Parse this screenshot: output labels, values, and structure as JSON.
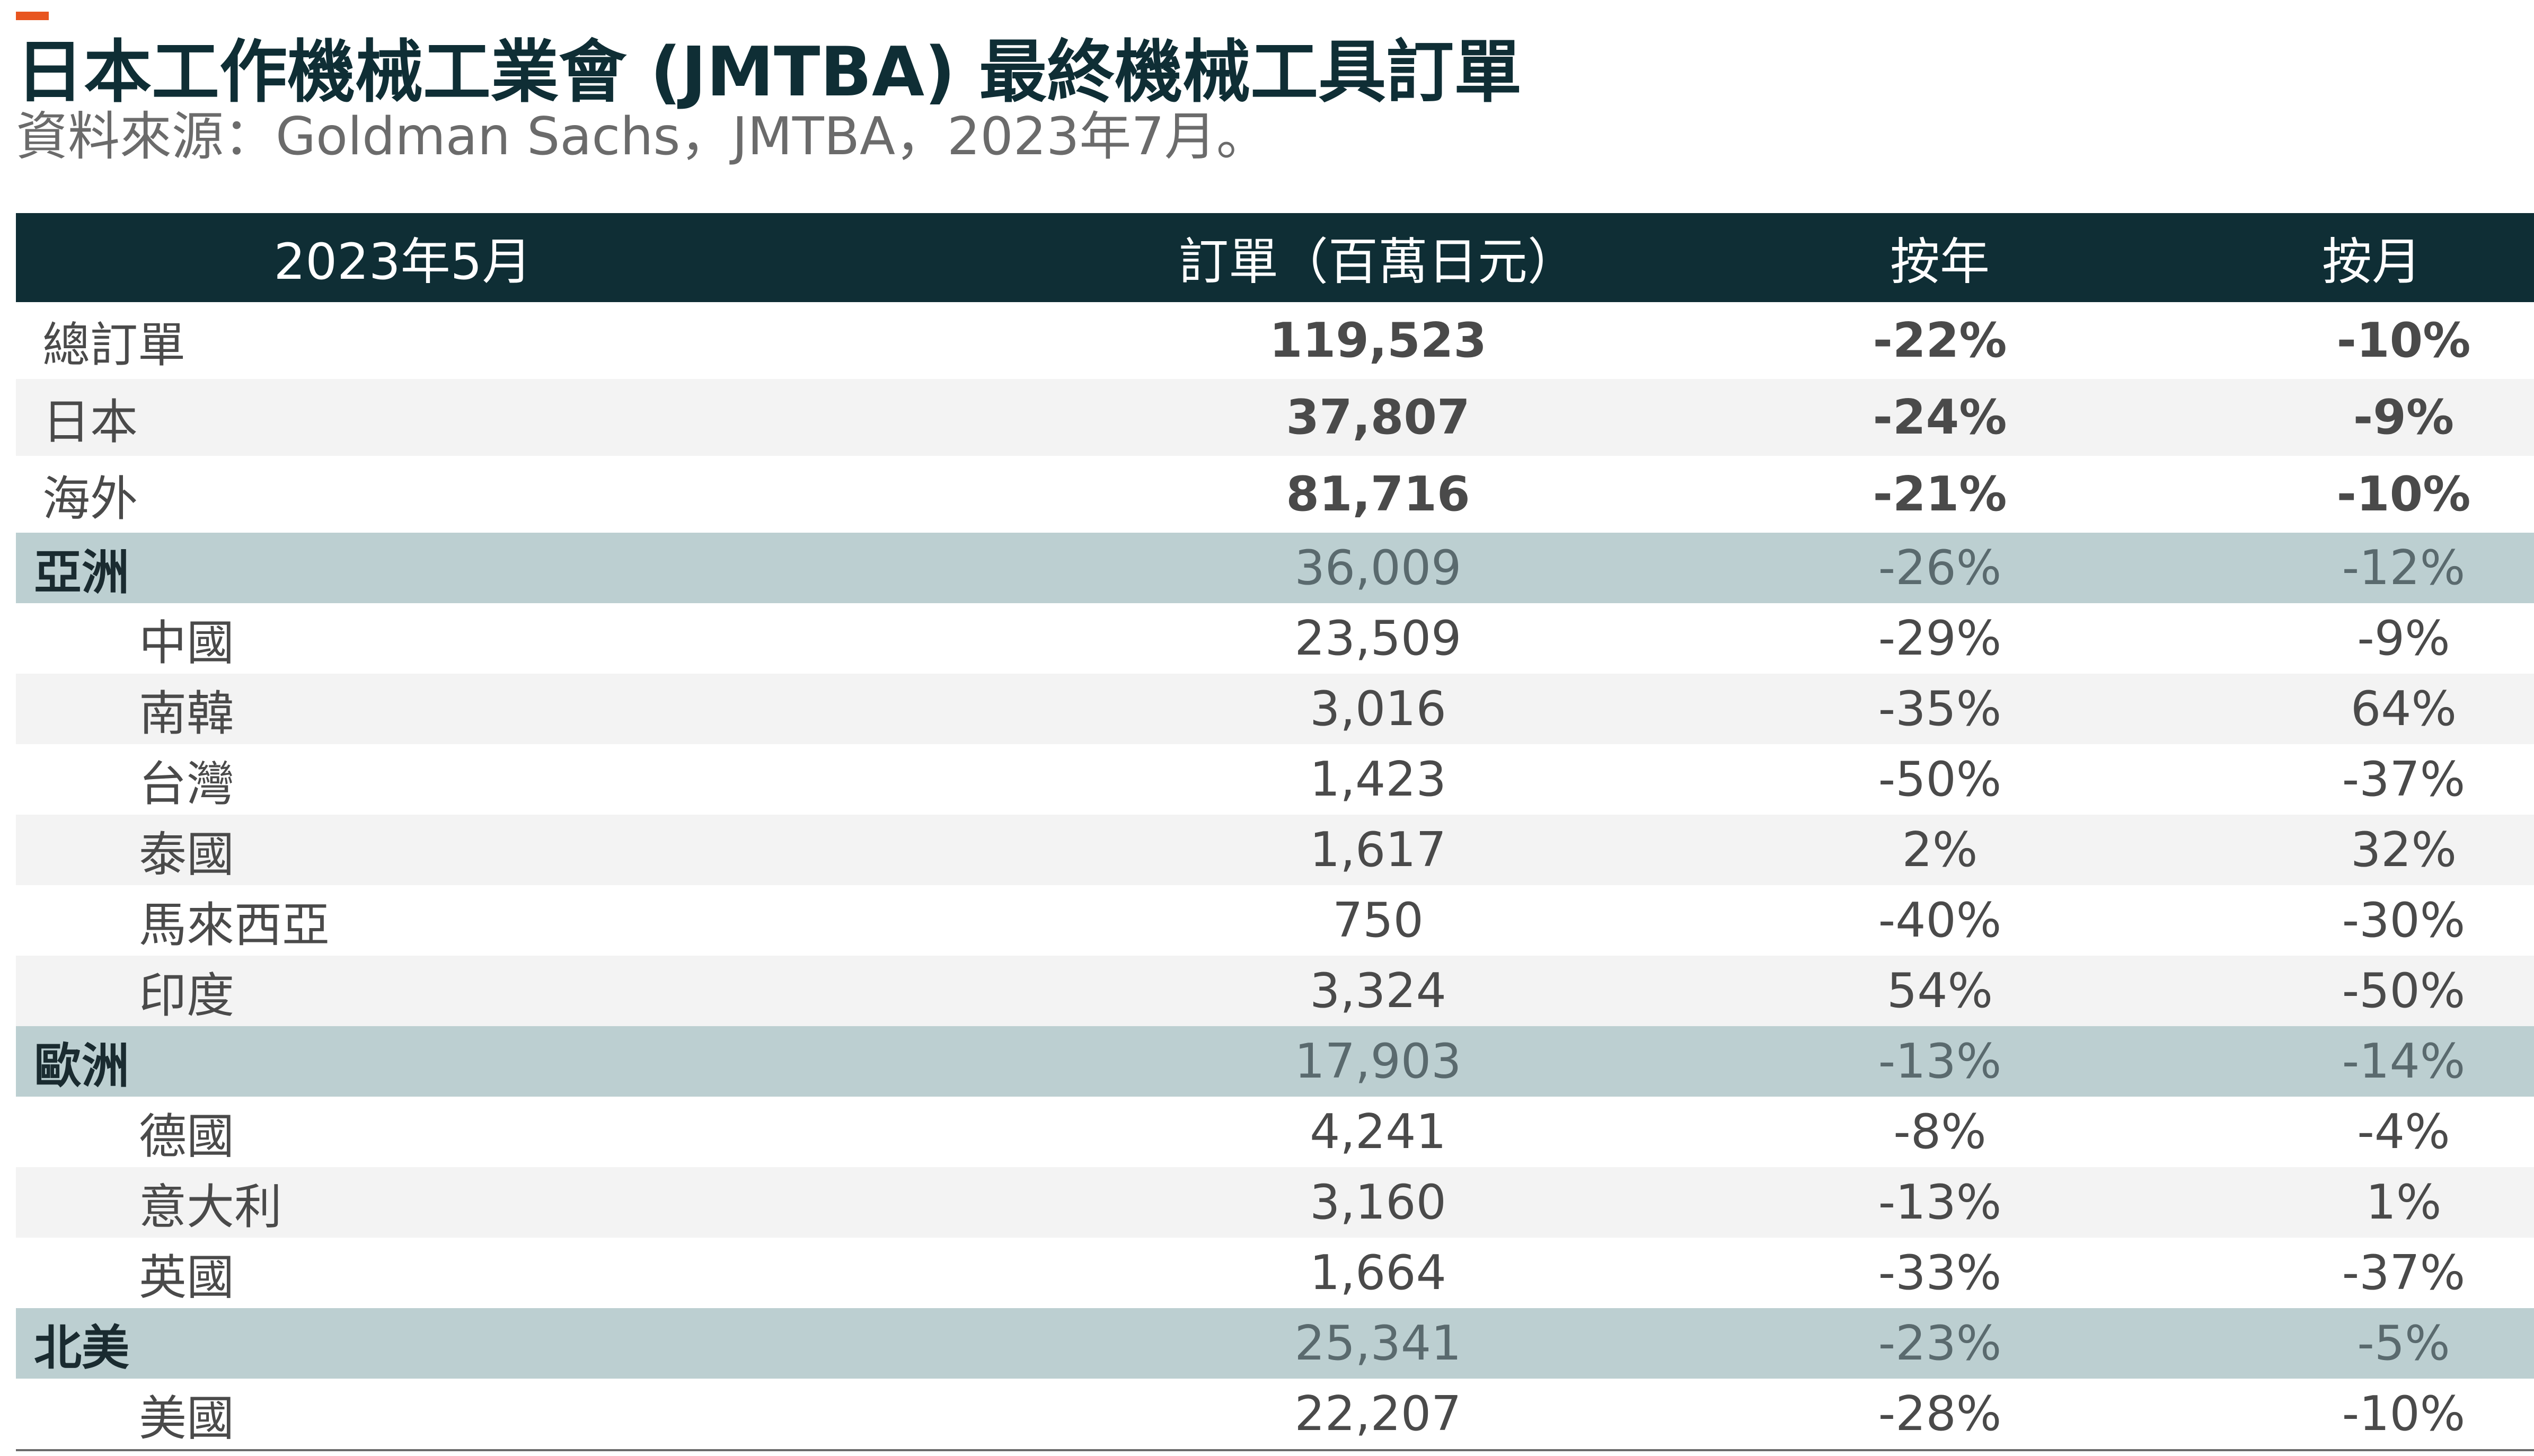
{
  "title": "日本工作機械工業會 (JMTBA) 最終機械工具訂單",
  "subtitle": "資料來源：Goldman Sachs，JMTBA，2023年7月。",
  "table": {
    "header": {
      "period": "2023年5月",
      "orders": "訂單（百萬日元）",
      "yoy": "按年",
      "mom": "按月"
    },
    "rows": [
      {
        "label": "總訂單",
        "value": "119,523",
        "yoy": "-22%",
        "mom": "-10%"
      },
      {
        "label": "日本",
        "value": "37,807",
        "yoy": "-24%",
        "mom": "-9%"
      },
      {
        "label": "海外",
        "value": "81,716",
        "yoy": "-21%",
        "mom": "-10%"
      },
      {
        "label": "亞洲",
        "value": "36,009",
        "yoy": "-26%",
        "mom": "-12%"
      },
      {
        "label": "中國",
        "value": "23,509",
        "yoy": "-29%",
        "mom": "-9%"
      },
      {
        "label": "南韓",
        "value": "3,016",
        "yoy": "-35%",
        "mom": "64%"
      },
      {
        "label": "台灣",
        "value": "1,423",
        "yoy": "-50%",
        "mom": "-37%"
      },
      {
        "label": "泰國",
        "value": "1,617",
        "yoy": "2%",
        "mom": "32%"
      },
      {
        "label": "馬來西亞",
        "value": "750",
        "yoy": "-40%",
        "mom": "-30%"
      },
      {
        "label": "印度",
        "value": "3,324",
        "yoy": "54%",
        "mom": "-50%"
      },
      {
        "label": "歐洲",
        "value": "17,903",
        "yoy": "-13%",
        "mom": "-14%"
      },
      {
        "label": "德國",
        "value": "4,241",
        "yoy": "-8%",
        "mom": "-4%"
      },
      {
        "label": "意大利",
        "value": "3,160",
        "yoy": "-13%",
        "mom": "1%"
      },
      {
        "label": "英國",
        "value": "1,664",
        "yoy": "-33%",
        "mom": "-37%"
      },
      {
        "label": "北美",
        "value": "25,341",
        "yoy": "-23%",
        "mom": "-5%"
      },
      {
        "label": "美國",
        "value": "22,207",
        "yoy": "-28%",
        "mom": "-10%"
      }
    ]
  },
  "colors": {
    "accent": "#e8551f",
    "header_bg": "#0f2e35",
    "region_bg": "#bccfd1",
    "stripe_bg": "#f3f3f3",
    "title_text": "#0f2e35"
  }
}
